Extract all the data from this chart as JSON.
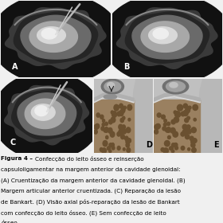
{
  "figure_bg": "#f0f0f0",
  "caption_bold": "Figura 4 – ",
  "caption_normal": "Confecção do leito ósseo e reinserção capsuloligamentar na margem anterior da cavidade glenoidal: (A) Cruentização da margem anterior da cavidade glenoidal. (B) Margem articular anterior cruentizada. (C) Reparação da lesão de Bankart. (D) Visão axial pós-reparação da lesão de Bankart com confecção do leito ósseo. (E) Sem confecção de leito ósseo.",
  "caption_fontsize": 5.2,
  "label_fontsize": 7,
  "border_color": "#cccccc",
  "panel_bg": "#f0f0f0"
}
